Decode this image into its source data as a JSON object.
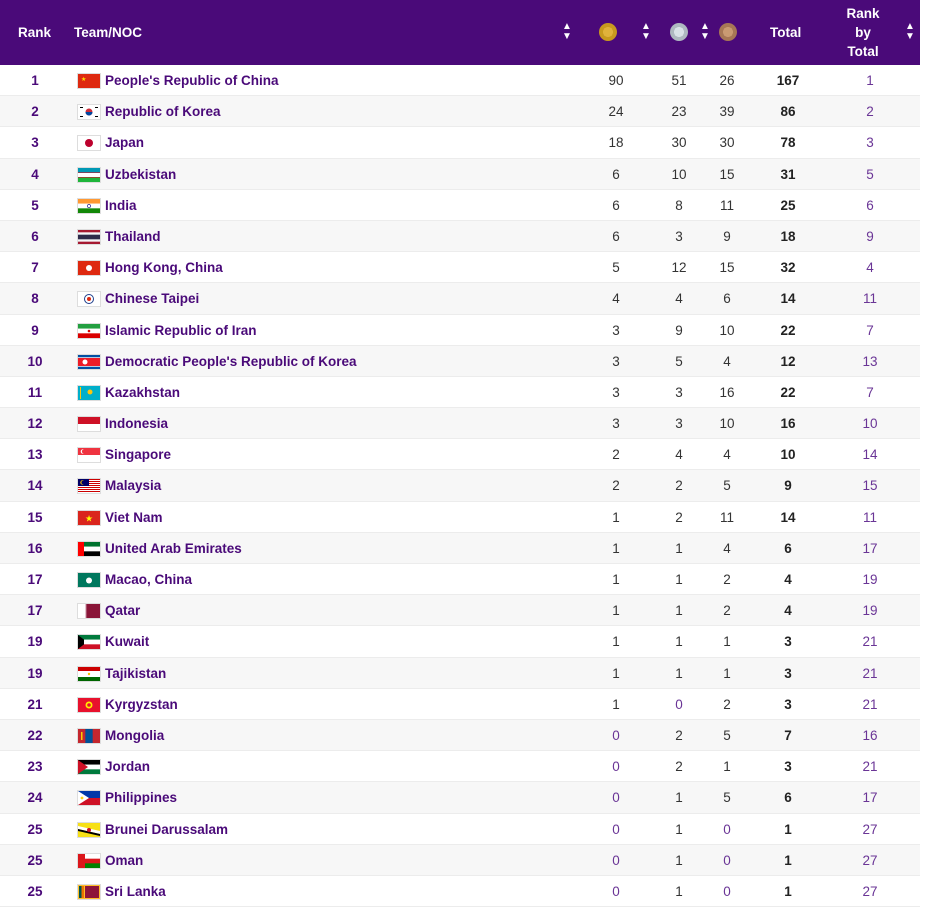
{
  "header": {
    "rank": "Rank",
    "team": "Team/NOC",
    "gold_icon": "gold-medal-icon",
    "silver_icon": "silver-medal-icon",
    "bronze_icon": "bronze-medal-icon",
    "total": "Total",
    "rank_by_total_1": "Rank",
    "rank_by_total_2": "by",
    "rank_by_total_3": "Total",
    "colors": {
      "header_bg": "#4a0a79",
      "team_text": "#4a0a79"
    }
  },
  "rows": [
    {
      "rank": "1",
      "flag": "china",
      "team": "People's Republic of China",
      "gold": "90",
      "silver": "51",
      "bronze": "26",
      "total": "167",
      "rank_total": "1"
    },
    {
      "rank": "2",
      "flag": "korea",
      "team": "Republic of Korea",
      "gold": "24",
      "silver": "23",
      "bronze": "39",
      "total": "86",
      "rank_total": "2"
    },
    {
      "rank": "3",
      "flag": "japan",
      "team": "Japan",
      "gold": "18",
      "silver": "30",
      "bronze": "30",
      "total": "78",
      "rank_total": "3"
    },
    {
      "rank": "4",
      "flag": "uzbekistan",
      "team": "Uzbekistan",
      "gold": "6",
      "silver": "10",
      "bronze": "15",
      "total": "31",
      "rank_total": "5"
    },
    {
      "rank": "5",
      "flag": "india",
      "team": "India",
      "gold": "6",
      "silver": "8",
      "bronze": "11",
      "total": "25",
      "rank_total": "6"
    },
    {
      "rank": "6",
      "flag": "thailand",
      "team": "Thailand",
      "gold": "6",
      "silver": "3",
      "bronze": "9",
      "total": "18",
      "rank_total": "9"
    },
    {
      "rank": "7",
      "flag": "hongkong",
      "team": "Hong Kong, China",
      "gold": "5",
      "silver": "12",
      "bronze": "15",
      "total": "32",
      "rank_total": "4"
    },
    {
      "rank": "8",
      "flag": "taipei",
      "team": "Chinese Taipei",
      "gold": "4",
      "silver": "4",
      "bronze": "6",
      "total": "14",
      "rank_total": "11"
    },
    {
      "rank": "9",
      "flag": "iran",
      "team": "Islamic Republic of Iran",
      "gold": "3",
      "silver": "9",
      "bronze": "10",
      "total": "22",
      "rank_total": "7"
    },
    {
      "rank": "10",
      "flag": "dprk",
      "team": "Democratic People's Republic of Korea",
      "gold": "3",
      "silver": "5",
      "bronze": "4",
      "total": "12",
      "rank_total": "13"
    },
    {
      "rank": "11",
      "flag": "kazakhstan",
      "team": "Kazakhstan",
      "gold": "3",
      "silver": "3",
      "bronze": "16",
      "total": "22",
      "rank_total": "7"
    },
    {
      "rank": "12",
      "flag": "indonesia",
      "team": "Indonesia",
      "gold": "3",
      "silver": "3",
      "bronze": "10",
      "total": "16",
      "rank_total": "10"
    },
    {
      "rank": "13",
      "flag": "singapore",
      "team": "Singapore",
      "gold": "2",
      "silver": "4",
      "bronze": "4",
      "total": "10",
      "rank_total": "14"
    },
    {
      "rank": "14",
      "flag": "malaysia",
      "team": "Malaysia",
      "gold": "2",
      "silver": "2",
      "bronze": "5",
      "total": "9",
      "rank_total": "15"
    },
    {
      "rank": "15",
      "flag": "vietnam",
      "team": "Viet Nam",
      "gold": "1",
      "silver": "2",
      "bronze": "11",
      "total": "14",
      "rank_total": "11"
    },
    {
      "rank": "16",
      "flag": "uae",
      "team": "United Arab Emirates",
      "gold": "1",
      "silver": "1",
      "bronze": "4",
      "total": "6",
      "rank_total": "17"
    },
    {
      "rank": "17",
      "flag": "macao",
      "team": "Macao, China",
      "gold": "1",
      "silver": "1",
      "bronze": "2",
      "total": "4",
      "rank_total": "19"
    },
    {
      "rank": "17",
      "flag": "qatar",
      "team": "Qatar",
      "gold": "1",
      "silver": "1",
      "bronze": "2",
      "total": "4",
      "rank_total": "19"
    },
    {
      "rank": "19",
      "flag": "kuwait",
      "team": "Kuwait",
      "gold": "1",
      "silver": "1",
      "bronze": "1",
      "total": "3",
      "rank_total": "21"
    },
    {
      "rank": "19",
      "flag": "tajikistan",
      "team": "Tajikistan",
      "gold": "1",
      "silver": "1",
      "bronze": "1",
      "total": "3",
      "rank_total": "21"
    },
    {
      "rank": "21",
      "flag": "kyrgyzstan",
      "team": "Kyrgyzstan",
      "gold": "1",
      "silver": "0",
      "bronze": "2",
      "total": "3",
      "rank_total": "21"
    },
    {
      "rank": "22",
      "flag": "mongolia",
      "team": "Mongolia",
      "gold": "0",
      "silver": "2",
      "bronze": "5",
      "total": "7",
      "rank_total": "16"
    },
    {
      "rank": "23",
      "flag": "jordan",
      "team": "Jordan",
      "gold": "0",
      "silver": "2",
      "bronze": "1",
      "total": "3",
      "rank_total": "21"
    },
    {
      "rank": "24",
      "flag": "philippines",
      "team": "Philippines",
      "gold": "0",
      "silver": "1",
      "bronze": "5",
      "total": "6",
      "rank_total": "17"
    },
    {
      "rank": "25",
      "flag": "brunei",
      "team": "Brunei Darussalam",
      "gold": "0",
      "silver": "1",
      "bronze": "0",
      "total": "1",
      "rank_total": "27"
    },
    {
      "rank": "25",
      "flag": "oman",
      "team": "Oman",
      "gold": "0",
      "silver": "1",
      "bronze": "0",
      "total": "1",
      "rank_total": "27"
    },
    {
      "rank": "25",
      "flag": "srilanka",
      "team": "Sri Lanka",
      "gold": "0",
      "silver": "1",
      "bronze": "0",
      "total": "1",
      "rank_total": "27"
    }
  ]
}
